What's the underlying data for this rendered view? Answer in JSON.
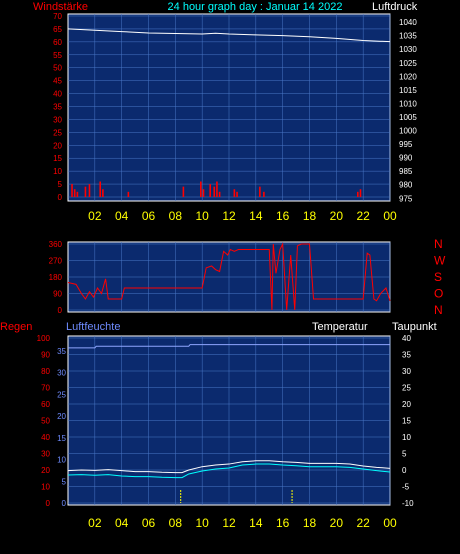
{
  "header": {
    "title": "24 hour graph day : Januar 14 2022",
    "left_label": "Windstärke",
    "right_label": "Luftdruck"
  },
  "panel_labels": {
    "regen": "Regen",
    "luftfeuchte": "Luftfeuchte",
    "temperatur": "Temperatur",
    "taupunkt": "Taupunkt"
  },
  "compass": [
    "N",
    "W",
    "S",
    "O",
    "N"
  ],
  "colors": {
    "background": "#000000",
    "plot_bg": "#0b2a6e",
    "grid": "#4a78c8",
    "wind": "#ff0000",
    "pressure": "#ffffff",
    "temperature": "#ffffff",
    "dewpoint": "#00ffff",
    "humidity": "#8fa6ff",
    "title": "#00ffff",
    "time_labels": "#ffff00",
    "left_axis": "#ff0000",
    "label_white": "#ffffff",
    "label_blue": "#6f8cff"
  },
  "chart_data": [
    {
      "type": "bar",
      "name": "wind_pressure",
      "x_ticks": [
        "02",
        "04",
        "06",
        "08",
        "10",
        "12",
        "14",
        "16",
        "18",
        "20",
        "22",
        "00"
      ],
      "xlim": [
        0,
        24
      ],
      "left_axis": {
        "ticks": [
          0,
          5,
          10,
          15,
          20,
          25,
          30,
          35,
          40,
          45,
          50,
          55,
          60,
          65,
          70
        ],
        "ylim": [
          0,
          70
        ]
      },
      "right_axis": {
        "ticks": [
          975,
          980,
          985,
          990,
          995,
          1000,
          1005,
          1010,
          1015,
          1020,
          1025,
          1030,
          1035,
          1040
        ],
        "ylim": [
          974,
          1043
        ]
      },
      "series": [
        {
          "kind": "bars",
          "axis": "left",
          "points": [
            [
              0.3,
              5
            ],
            [
              0.5,
              3
            ],
            [
              0.7,
              2
            ],
            [
              1.3,
              4
            ],
            [
              1.6,
              5
            ],
            [
              2.4,
              6
            ],
            [
              2.6,
              3
            ],
            [
              4.5,
              2
            ],
            [
              8.6,
              4
            ],
            [
              9.9,
              6
            ],
            [
              10.1,
              3
            ],
            [
              10.6,
              5
            ],
            [
              10.9,
              4
            ],
            [
              11.1,
              6
            ],
            [
              11.3,
              2
            ],
            [
              12.4,
              3
            ],
            [
              12.6,
              2
            ],
            [
              14.3,
              4
            ],
            [
              14.6,
              2
            ],
            [
              21.6,
              2
            ],
            [
              21.8,
              3
            ]
          ]
        },
        {
          "kind": "line",
          "axis": "right",
          "x": [
            0,
            2,
            4,
            6,
            8,
            10,
            11,
            12,
            14,
            16,
            18,
            20,
            22,
            24
          ],
          "y": [
            1037.5,
            1037.0,
            1036.5,
            1036.0,
            1035.8,
            1035.6,
            1035.9,
            1035.6,
            1035.3,
            1035.0,
            1034.6,
            1034.0,
            1033.2,
            1032.8
          ]
        }
      ]
    },
    {
      "type": "line",
      "name": "wind_direction",
      "xlim": [
        0,
        24
      ],
      "y_ticks": [
        0,
        90,
        180,
        270,
        360
      ],
      "ylim": [
        0,
        360
      ],
      "series": [
        {
          "name": "direction",
          "x": [
            0,
            0.6,
            1.0,
            1.3,
            1.6,
            1.9,
            2.2,
            2.5,
            2.8,
            3.0,
            4.0,
            4.2,
            5.0,
            6.0,
            7.0,
            8.0,
            9.0,
            10.0,
            10.3,
            10.7,
            11.0,
            11.3,
            11.6,
            11.9,
            12.1,
            12.4,
            12.7,
            13.0,
            14.0,
            15.0,
            15.2,
            15.3,
            15.5,
            15.8,
            16.0,
            16.3,
            16.6,
            16.9,
            17.1,
            17.4,
            17.7,
            18.0,
            18.3,
            19.0,
            20.0,
            20.5,
            21.0,
            21.5,
            22.0,
            22.3,
            22.5,
            22.8,
            23.0,
            23.3,
            23.7,
            24.0
          ],
          "y": [
            150,
            140,
            90,
            60,
            100,
            70,
            120,
            90,
            170,
            60,
            60,
            120,
            120,
            120,
            120,
            120,
            120,
            120,
            230,
            240,
            220,
            210,
            320,
            300,
            330,
            320,
            330,
            330,
            330,
            330,
            0,
            360,
            200,
            330,
            360,
            0,
            300,
            0,
            350,
            360,
            360,
            360,
            60,
            60,
            60,
            60,
            60,
            60,
            60,
            310,
            300,
            60,
            50,
            90,
            120,
            50
          ]
        }
      ]
    },
    {
      "type": "line",
      "name": "humidity_temperature",
      "xlim": [
        0,
        24
      ],
      "left_axis": {
        "ticks": [
          0,
          10,
          20,
          30,
          40,
          50,
          60,
          70,
          80,
          90,
          100
        ],
        "ylim": [
          0,
          100
        ]
      },
      "mid_axis": {
        "ticks": [
          0,
          5,
          10,
          15,
          20,
          25,
          30,
          35
        ],
        "ylim": [
          0,
          38
        ]
      },
      "right_axis": {
        "ticks": [
          -10,
          -5,
          0,
          5,
          10,
          15,
          20,
          25,
          30,
          35,
          40
        ],
        "ylim": [
          -10,
          40
        ]
      },
      "x_ticks": [
        "02",
        "04",
        "06",
        "08",
        "10",
        "12",
        "14",
        "16",
        "18",
        "20",
        "22",
        "00"
      ],
      "series": [
        {
          "name": "Luftfeuchte",
          "axis": "left",
          "x": [
            0,
            2.0,
            2.1,
            3.9,
            4.0,
            9.0,
            9.1,
            10.5,
            10.6,
            11.4,
            11.5,
            12.0,
            24
          ],
          "y": [
            94,
            94,
            95,
            95,
            95,
            95,
            96,
            96,
            96,
            96,
            96,
            96,
            96
          ]
        },
        {
          "name": "Temperatur",
          "axis": "right",
          "x": [
            0,
            1,
            2,
            3,
            4,
            5,
            6,
            7,
            8,
            8.5,
            9,
            10,
            11,
            12,
            13,
            14,
            15,
            16,
            17,
            18,
            19,
            20,
            21,
            22,
            23,
            24
          ],
          "y": [
            -0.2,
            0.0,
            -0.1,
            0.1,
            -0.2,
            -0.5,
            -0.5,
            -0.7,
            -0.8,
            -0.8,
            0.0,
            1.0,
            1.5,
            1.8,
            2.5,
            2.8,
            2.8,
            2.5,
            2.3,
            2.0,
            2.0,
            2.0,
            1.8,
            1.2,
            0.8,
            0.5
          ]
        },
        {
          "name": "Taupunkt",
          "axis": "right",
          "x": [
            0,
            1,
            2,
            3,
            4,
            5,
            6,
            7,
            8,
            8.5,
            9,
            10,
            11,
            12,
            13,
            14,
            15,
            16,
            17,
            18,
            19,
            20,
            21,
            22,
            23,
            24
          ],
          "y": [
            -1.5,
            -1.4,
            -1.6,
            -1.4,
            -1.8,
            -2.0,
            -2.0,
            -2.2,
            -2.3,
            -2.3,
            -1.2,
            -0.3,
            0.3,
            0.6,
            1.5,
            1.8,
            1.8,
            1.5,
            1.3,
            1.0,
            1.0,
            1.0,
            0.8,
            0.3,
            -0.2,
            -0.6
          ]
        },
        {
          "name": "Regen",
          "axis": "mid",
          "kind": "bars",
          "points": [
            [
              8.4,
              3
            ],
            [
              16.7,
              3
            ]
          ]
        }
      ]
    }
  ]
}
